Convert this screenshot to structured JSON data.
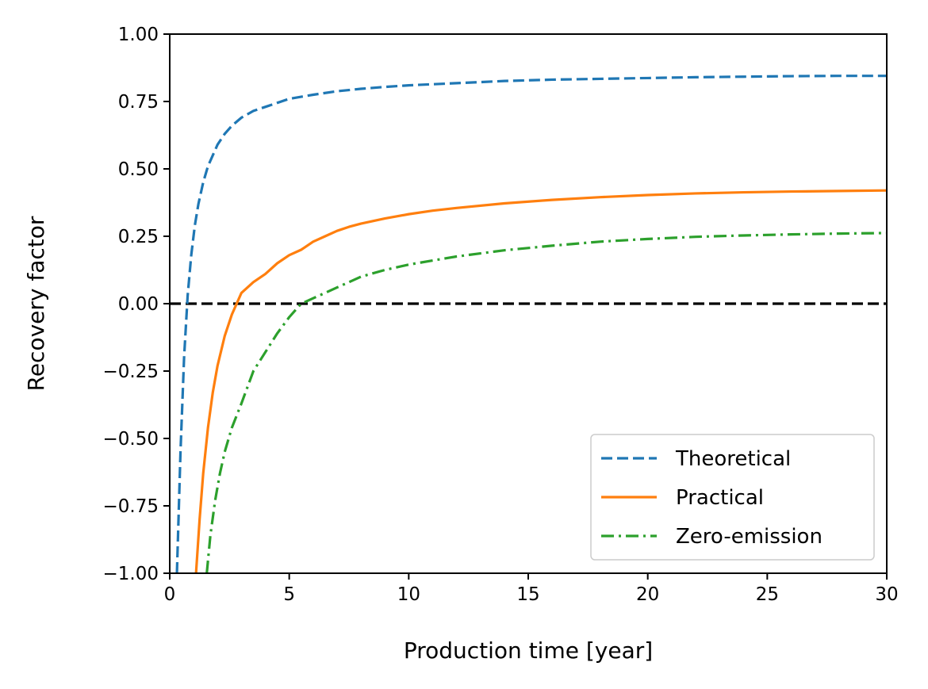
{
  "chart_data": {
    "type": "line",
    "xlabel": "Production time [year]",
    "ylabel": "Recovery factor",
    "xlim": [
      0,
      30
    ],
    "ylim": [
      -1.0,
      1.0
    ],
    "xticks": [
      0,
      5,
      10,
      15,
      20,
      25,
      30
    ],
    "xtick_labels": [
      "0",
      "5",
      "10",
      "15",
      "20",
      "25",
      "30"
    ],
    "yticks": [
      -1.0,
      -0.75,
      -0.5,
      -0.25,
      0.0,
      0.25,
      0.5,
      0.75,
      1.0
    ],
    "ytick_labels": [
      "−1.00",
      "−0.75",
      "−0.50",
      "−0.25",
      "0.00",
      "0.25",
      "0.50",
      "0.75",
      "1.00"
    ],
    "grid": false,
    "legend_position": "lower-right",
    "reference_line": {
      "y": 0.0,
      "color": "#000000",
      "style": "dashed"
    },
    "series": [
      {
        "name": "Theoretical",
        "color": "#1f77b4",
        "style": "dashed",
        "x": [
          0.3,
          0.45,
          0.6,
          0.75,
          0.9,
          1.05,
          1.2,
          1.4,
          1.6,
          1.8,
          2.0,
          2.3,
          2.6,
          3.0,
          3.5,
          4.0,
          4.5,
          5,
          6,
          7,
          8,
          9,
          10,
          12,
          14,
          16,
          18,
          20,
          22,
          24,
          26,
          28,
          30
        ],
        "y": [
          -1.0,
          -0.55,
          -0.2,
          0.03,
          0.18,
          0.29,
          0.37,
          0.45,
          0.51,
          0.55,
          0.59,
          0.63,
          0.66,
          0.69,
          0.715,
          0.73,
          0.745,
          0.76,
          0.775,
          0.788,
          0.797,
          0.804,
          0.81,
          0.818,
          0.826,
          0.831,
          0.834,
          0.837,
          0.84,
          0.842,
          0.844,
          0.845,
          0.845
        ]
      },
      {
        "name": "Practical",
        "color": "#ff7f0e",
        "style": "solid",
        "x": [
          1.1,
          1.25,
          1.4,
          1.6,
          1.8,
          2.0,
          2.3,
          2.6,
          3.0,
          3.5,
          4.0,
          4.5,
          5,
          5.5,
          6,
          6.5,
          7,
          7.5,
          8,
          9,
          10,
          11,
          12,
          14,
          16,
          18,
          20,
          22,
          24,
          26,
          28,
          30
        ],
        "y": [
          -1.0,
          -0.8,
          -0.63,
          -0.46,
          -0.33,
          -0.23,
          -0.12,
          -0.04,
          0.04,
          0.08,
          0.11,
          0.15,
          0.18,
          0.2,
          0.23,
          0.25,
          0.27,
          0.285,
          0.297,
          0.316,
          0.332,
          0.345,
          0.355,
          0.372,
          0.385,
          0.395,
          0.403,
          0.409,
          0.413,
          0.416,
          0.418,
          0.42
        ]
      },
      {
        "name": "Zero-emission",
        "color": "#2ca02c",
        "style": "dashdot",
        "x": [
          1.55,
          1.7,
          1.9,
          2.1,
          2.3,
          2.6,
          3.0,
          3.5,
          4.0,
          4.5,
          5.0,
          5.5,
          6.0,
          6.5,
          7,
          7.5,
          8,
          9,
          10,
          11,
          12,
          14,
          16,
          18,
          20,
          22,
          24,
          26,
          28,
          30
        ],
        "y": [
          -1.0,
          -0.86,
          -0.73,
          -0.63,
          -0.55,
          -0.46,
          -0.37,
          -0.25,
          -0.18,
          -0.11,
          -0.05,
          0.0,
          0.02,
          0.04,
          0.06,
          0.08,
          0.1,
          0.125,
          0.145,
          0.16,
          0.175,
          0.198,
          0.215,
          0.23,
          0.24,
          0.248,
          0.253,
          0.257,
          0.26,
          0.262
        ]
      }
    ]
  }
}
